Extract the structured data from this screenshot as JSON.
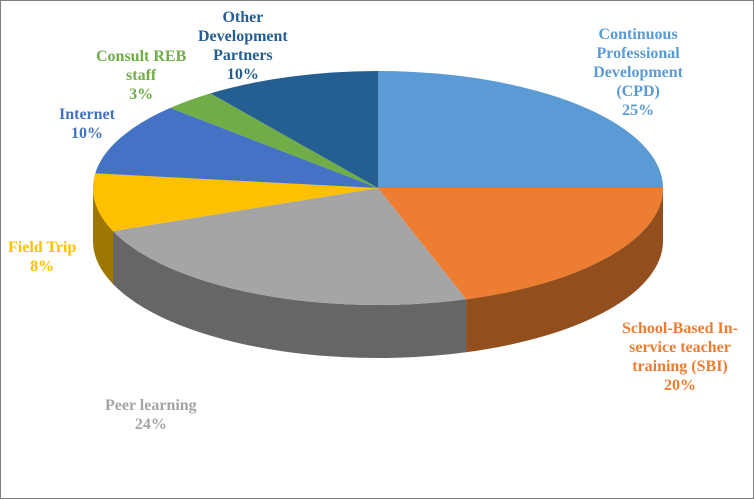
{
  "chart_data": {
    "type": "pie",
    "title": "",
    "slices": [
      {
        "label_lines": [
          "Continuous",
          "Professional",
          "Development",
          "(CPD)"
        ],
        "value": 25,
        "value_label": "25%",
        "color": "#5b9bd5"
      },
      {
        "label_lines": [
          "School-Based In-",
          "service teacher",
          "training (SBI)"
        ],
        "value": 20,
        "value_label": "20%",
        "color": "#ed7d31"
      },
      {
        "label_lines": [
          "Peer learning"
        ],
        "value": 24,
        "value_label": "24%",
        "color": "#a5a5a5"
      },
      {
        "label_lines": [
          "Field Trip"
        ],
        "value": 8,
        "value_label": "8%",
        "color": "#ffc000"
      },
      {
        "label_lines": [
          "Internet"
        ],
        "value": 10,
        "value_label": "10%",
        "color": "#4472c4"
      },
      {
        "label_lines": [
          "Consult REB",
          "staff"
        ],
        "value": 3,
        "value_label": "3%",
        "color": "#70ad47"
      },
      {
        "label_lines": [
          "Other",
          "Development",
          "Partners"
        ],
        "value": 10,
        "value_label": "10%",
        "color": "#255e91"
      }
    ]
  }
}
